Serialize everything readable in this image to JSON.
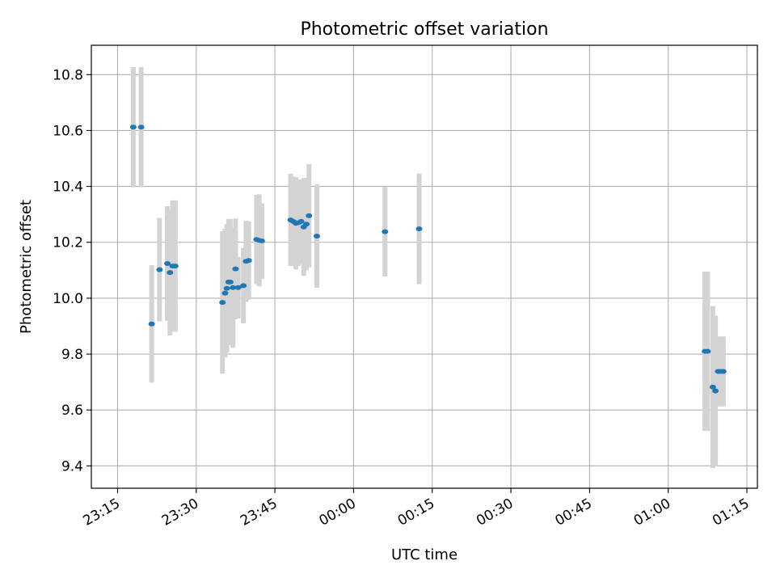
{
  "chart_data": {
    "type": "scatter",
    "title": "Photometric offset variation",
    "xlabel": "UTC time",
    "ylabel": "Photometric offset",
    "x_is_time": true,
    "xlim": [
      "23:10",
      "01:17"
    ],
    "ylim": [
      9.32,
      10.905
    ],
    "x_ticks": [
      "23:15",
      "23:30",
      "23:45",
      "00:00",
      "00:15",
      "00:30",
      "00:45",
      "01:00",
      "01:15"
    ],
    "y_ticks": [
      "9.4",
      "9.6",
      "9.8",
      "10.0",
      "10.2",
      "10.4",
      "10.6",
      "10.8"
    ],
    "grid": true,
    "colors": {
      "point": "#1f77b4",
      "error_bar": "#d3d3d3",
      "grid": "#b0b0b0"
    },
    "points": [
      {
        "t": "23:18:00",
        "y": 10.612,
        "err": 0.215
      },
      {
        "t": "23:19:30",
        "y": 10.612,
        "err": 0.215
      },
      {
        "t": "23:21:30",
        "y": 9.908,
        "err": 0.21
      },
      {
        "t": "23:23:00",
        "y": 10.102,
        "err": 0.185
      },
      {
        "t": "23:24:30",
        "y": 10.124,
        "err": 0.205
      },
      {
        "t": "23:25:00",
        "y": 10.092,
        "err": 0.225
      },
      {
        "t": "23:25:30",
        "y": 10.115,
        "err": 0.235
      },
      {
        "t": "23:26:00",
        "y": 10.115,
        "err": 0.235
      },
      {
        "t": "23:35:00",
        "y": 9.985,
        "err": 0.255
      },
      {
        "t": "23:35:30",
        "y": 10.018,
        "err": 0.23
      },
      {
        "t": "23:35:50",
        "y": 10.035,
        "err": 0.23
      },
      {
        "t": "23:36:10",
        "y": 10.058,
        "err": 0.225
      },
      {
        "t": "23:36:30",
        "y": 10.058,
        "err": 0.225
      },
      {
        "t": "23:37:00",
        "y": 10.038,
        "err": 0.215
      },
      {
        "t": "23:37:30",
        "y": 10.105,
        "err": 0.18
      },
      {
        "t": "23:38:00",
        "y": 10.038,
        "err": 0.11
      },
      {
        "t": "23:39:00",
        "y": 10.045,
        "err": 0.135
      },
      {
        "t": "23:39:30",
        "y": 10.132,
        "err": 0.145
      },
      {
        "t": "23:40:00",
        "y": 10.135,
        "err": 0.14
      },
      {
        "t": "23:41:30",
        "y": 10.21,
        "err": 0.16
      },
      {
        "t": "23:42:00",
        "y": 10.207,
        "err": 0.165
      },
      {
        "t": "23:42:30",
        "y": 10.205,
        "err": 0.135
      },
      {
        "t": "23:48:00",
        "y": 10.28,
        "err": 0.165
      },
      {
        "t": "23:48:30",
        "y": 10.275,
        "err": 0.16
      },
      {
        "t": "23:49:00",
        "y": 10.268,
        "err": 0.165
      },
      {
        "t": "23:49:30",
        "y": 10.27,
        "err": 0.155
      },
      {
        "t": "23:50:00",
        "y": 10.275,
        "err": 0.15
      },
      {
        "t": "23:50:30",
        "y": 10.255,
        "err": 0.175
      },
      {
        "t": "23:51:00",
        "y": 10.265,
        "err": 0.165
      },
      {
        "t": "23:51:30",
        "y": 10.295,
        "err": 0.185
      },
      {
        "t": "23:53:00",
        "y": 10.222,
        "err": 0.185
      },
      {
        "t": "00:06:00",
        "y": 10.238,
        "err": 0.16
      },
      {
        "t": "00:12:30",
        "y": 10.248,
        "err": 0.198
      },
      {
        "t": "01:07:00",
        "y": 9.81,
        "err": 0.285
      },
      {
        "t": "01:07:30",
        "y": 9.81,
        "err": 0.285
      },
      {
        "t": "01:08:30",
        "y": 9.682,
        "err": 0.29
      },
      {
        "t": "01:09:00",
        "y": 9.668,
        "err": 0.27
      },
      {
        "t": "01:09:30",
        "y": 9.738,
        "err": 0.125
      },
      {
        "t": "01:10:00",
        "y": 9.738,
        "err": 0.125
      },
      {
        "t": "01:10:30",
        "y": 9.738,
        "err": 0.125
      }
    ]
  }
}
